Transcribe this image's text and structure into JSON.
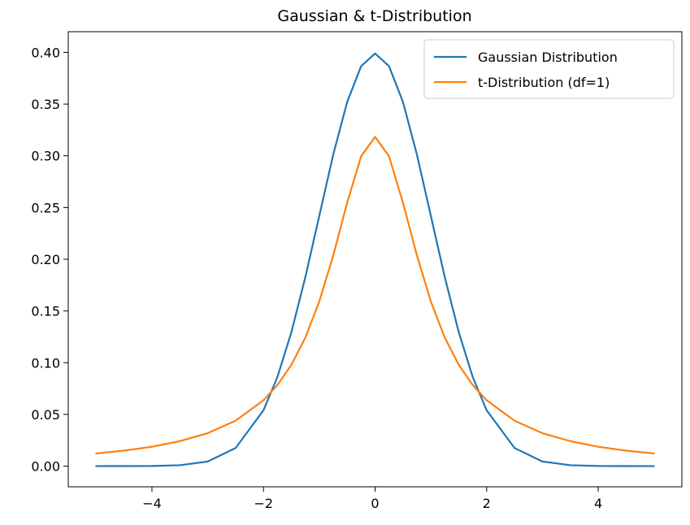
{
  "chart_data": {
    "type": "line",
    "title": "Gaussian & t-Distribution",
    "xlabel": "",
    "ylabel": "",
    "xlim": [
      -5.5,
      5.5
    ],
    "ylim": [
      -0.02,
      0.42
    ],
    "xticks": [
      -4,
      -2,
      0,
      2,
      4
    ],
    "xtick_labels": [
      "−4",
      "−2",
      "0",
      "2",
      "4"
    ],
    "yticks": [
      0.0,
      0.05,
      0.1,
      0.15,
      0.2,
      0.25,
      0.3,
      0.35,
      0.4
    ],
    "ytick_labels": [
      "0.00",
      "0.05",
      "0.10",
      "0.15",
      "0.20",
      "0.25",
      "0.30",
      "0.35",
      "0.40"
    ],
    "grid": false,
    "legend_position": "top-right",
    "series": [
      {
        "name": "Gaussian Distribution",
        "color": "#1f77b4",
        "x": [
          -5,
          -4.5,
          -4,
          -3.5,
          -3,
          -2.5,
          -2,
          -1.75,
          -1.5,
          -1.25,
          -1,
          -0.75,
          -0.5,
          -0.25,
          0,
          0.25,
          0.5,
          0.75,
          1,
          1.25,
          1.5,
          1.75,
          2,
          2.5,
          3,
          3.5,
          4,
          4.5,
          5
        ],
        "y": [
          1.5e-06,
          1.6e-05,
          0.000134,
          0.000873,
          0.004432,
          0.017528,
          0.053991,
          0.086277,
          0.129518,
          0.182649,
          0.241971,
          0.301137,
          0.352065,
          0.386668,
          0.398942,
          0.386668,
          0.352065,
          0.301137,
          0.241971,
          0.182649,
          0.129518,
          0.086277,
          0.053991,
          0.017528,
          0.004432,
          0.000873,
          0.000134,
          1.6e-05,
          1.5e-06
        ]
      },
      {
        "name": "t-Distribution (df=1)",
        "color": "#ff7f0e",
        "x": [
          -5,
          -4.5,
          -4,
          -3.5,
          -3,
          -2.5,
          -2,
          -1.75,
          -1.5,
          -1.25,
          -1,
          -0.75,
          -0.5,
          -0.25,
          0,
          0.25,
          0.5,
          0.75,
          1,
          1.25,
          1.5,
          1.75,
          2,
          2.5,
          3,
          3.5,
          4,
          4.5,
          5
        ],
        "y": [
          0.012243,
          0.014979,
          0.018724,
          0.024112,
          0.031831,
          0.043905,
          0.063662,
          0.078405,
          0.097942,
          0.124178,
          0.159155,
          0.203718,
          0.254648,
          0.299585,
          0.31831,
          0.299585,
          0.254648,
          0.203718,
          0.159155,
          0.124178,
          0.097942,
          0.078405,
          0.063662,
          0.043905,
          0.031831,
          0.024112,
          0.018724,
          0.014979,
          0.012243
        ]
      }
    ]
  }
}
